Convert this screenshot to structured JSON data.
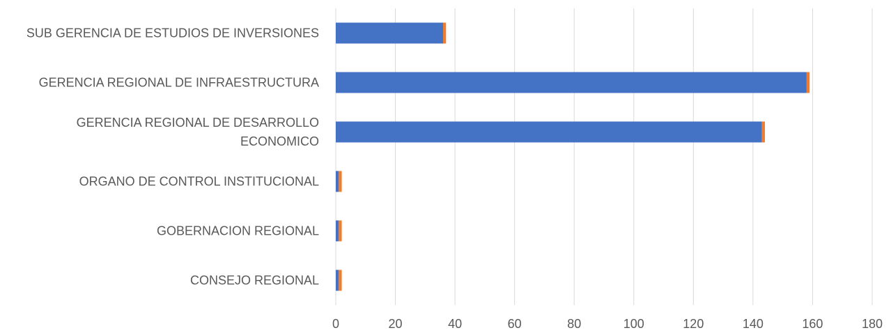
{
  "chart_data": {
    "type": "bar",
    "orientation": "horizontal",
    "stacked": true,
    "categories": [
      "CONSEJO REGIONAL",
      "GOBERNACION REGIONAL",
      "ORGANO DE CONTROL INSTITUCIONAL",
      "GERENCIA REGIONAL DE DESARROLLO ECONOMICO",
      "GERENCIA REGIONAL DE INFRAESTRUCTURA",
      "SUB GERENCIA DE ESTUDIOS DE INVERSIONES"
    ],
    "category_lines": [
      [
        "CONSEJO REGIONAL"
      ],
      [
        "GOBERNACION REGIONAL"
      ],
      [
        "ORGANO DE CONTROL INSTITUCIONAL"
      ],
      [
        "GERENCIA REGIONAL DE DESARROLLO",
        "ECONOMICO"
      ],
      [
        "GERENCIA REGIONAL DE INFRAESTRUCTURA"
      ],
      [
        "SUB GERENCIA DE ESTUDIOS DE INVERSIONES"
      ]
    ],
    "series": [
      {
        "values": [
          1,
          1,
          1,
          143,
          158,
          36
        ],
        "color": "#4472c4"
      },
      {
        "values": [
          1,
          1,
          1,
          1,
          1,
          1
        ],
        "color": "#ed7d31"
      }
    ],
    "xlim": [
      0,
      180
    ],
    "xticks": [
      "0",
      "20",
      "40",
      "60",
      "80",
      "100",
      "120",
      "140",
      "160",
      "180"
    ],
    "grid": "vertical",
    "legend": "none",
    "title": "",
    "xlabel": "",
    "ylabel": ""
  }
}
